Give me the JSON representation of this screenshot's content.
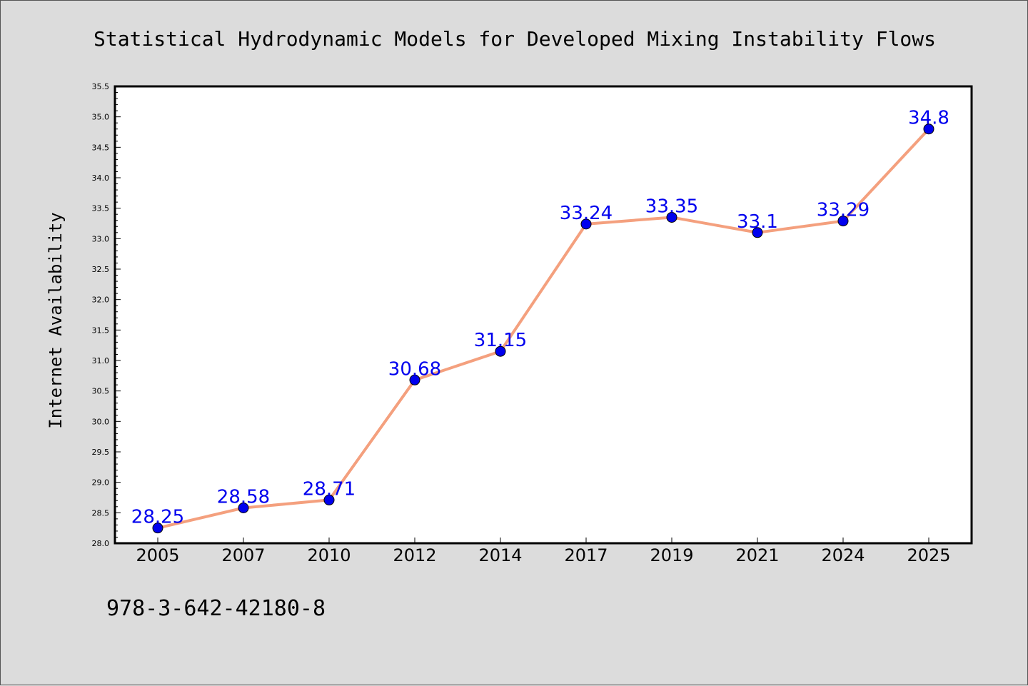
{
  "chart_data": {
    "type": "line",
    "title": "Statistical Hydrodynamic Models for Developed Mixing Instability Flows",
    "ylabel": "Internet Availability",
    "xlabel": "",
    "categories": [
      "2005",
      "2007",
      "2010",
      "2012",
      "2014",
      "2017",
      "2019",
      "2021",
      "2024",
      "2025"
    ],
    "series": [
      {
        "values": [
          28.25,
          28.58,
          28.71,
          30.68,
          31.15,
          33.24,
          33.35,
          33.1,
          33.29,
          34.8
        ],
        "data_labels": [
          "28.25",
          "28.58",
          "28.71",
          "30.68",
          "31.15",
          "33.24",
          "33.35",
          "33.1",
          "33.29",
          "34.8"
        ]
      }
    ],
    "ylim": [
      28.0,
      35.5
    ],
    "yticks": [
      "28.0",
      "28.5",
      "29.0",
      "29.5",
      "30.0",
      "30.5",
      "31.0",
      "31.5",
      "32.0",
      "32.5",
      "33.0",
      "33.5",
      "34.0",
      "34.5",
      "35.0",
      "35.5"
    ],
    "grid": false,
    "legend": "none",
    "colors": {
      "line": "#f4a07e",
      "marker": "#0000ee",
      "label": "#0000ee",
      "background": "#dcdcdc",
      "plot_background": "#ffffff"
    }
  },
  "footnote": "978-3-642-42180-8"
}
